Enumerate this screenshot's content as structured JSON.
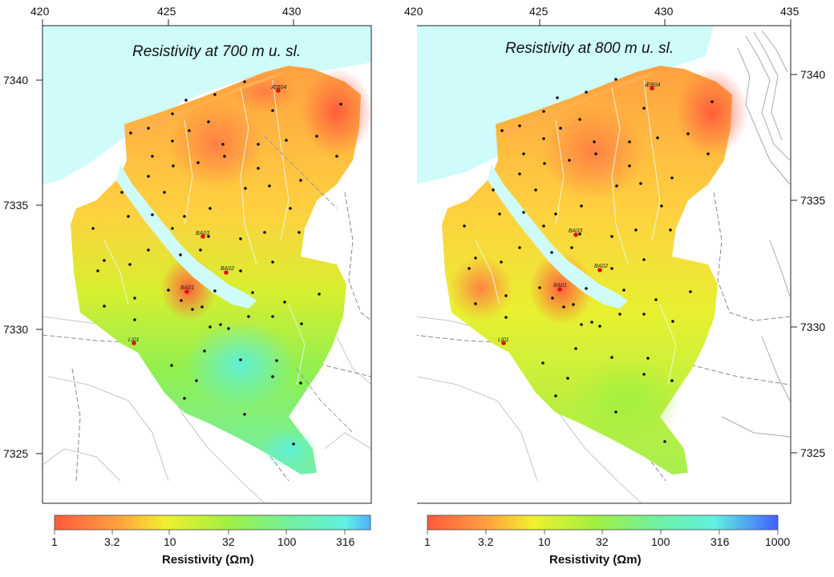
{
  "left_map": {
    "title": "Resistivity at 700 m u. sl.",
    "x_ticks": [
      "420",
      "425",
      "430"
    ],
    "y_ticks": [
      "7340",
      "7335",
      "7330",
      "7325"
    ],
    "sites": [
      "ÆB04",
      "BA03",
      "BA02",
      "BA01",
      "LI01"
    ],
    "colorbar_ticks": [
      "1",
      "3.2",
      "10",
      "32",
      "100",
      "316"
    ],
    "colorbar_title": "Resistivity (Ωm)"
  },
  "right_map": {
    "title": "Resistivity at 800 m u. sl.",
    "x_ticks": [
      "420",
      "425",
      "430",
      "435"
    ],
    "y_ticks": [
      "7340",
      "7335",
      "7330",
      "7325"
    ],
    "sites": [
      "ÆB04",
      "BA03",
      "BA02",
      "BA01",
      "LI01"
    ],
    "colorbar_ticks": [
      "1",
      "3.2",
      "10",
      "32",
      "100",
      "316",
      "1000"
    ],
    "colorbar_title": "Resistivity (Ωm)"
  },
  "colors": {
    "sea": "#cffbfb",
    "low": "#ff5a3c",
    "mid": "#f0f030",
    "high": "#5ff0d8",
    "very_high": "#4060ff",
    "station": "#111111",
    "site": "#e01010"
  }
}
